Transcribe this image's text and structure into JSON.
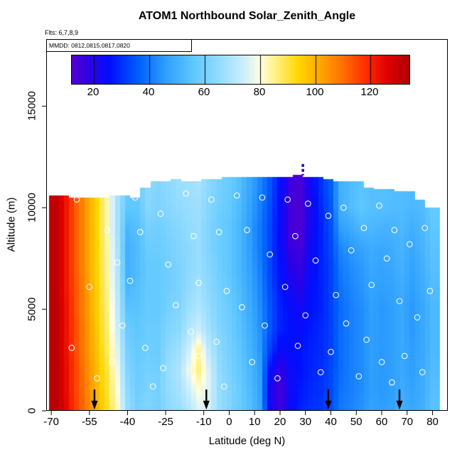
{
  "chart_data": {
    "type": "heatmap",
    "title": "ATOM1 Northbound Solar_Zenith_Angle",
    "flights_note": "Flts: 6,7,8,9",
    "mmdd_note": "MMDD: 0812,0815,0817,0820",
    "xlabel": "Latitude (deg N)",
    "ylabel": "Altitude (m)",
    "x_ticks": [
      -70,
      -55,
      -40,
      -25,
      -10,
      0,
      10,
      20,
      30,
      40,
      50,
      60,
      70,
      80
    ],
    "y_ticks": [
      0,
      5000,
      10000,
      15000
    ],
    "xlim": [
      -72,
      86
    ],
    "ylim": [
      0,
      18300
    ],
    "colorbar": {
      "ticks": [
        20,
        40,
        60,
        80,
        100,
        120
      ],
      "vmin": 12,
      "vmax": 134,
      "stops": [
        {
          "v": 10,
          "c": "#6000C8"
        },
        {
          "v": 18,
          "c": "#3000E6"
        },
        {
          "v": 26,
          "c": "#0010FF"
        },
        {
          "v": 36,
          "c": "#0060FF"
        },
        {
          "v": 46,
          "c": "#30A0FF"
        },
        {
          "v": 56,
          "c": "#60C8FF"
        },
        {
          "v": 66,
          "c": "#98DEFF"
        },
        {
          "v": 74,
          "c": "#CCEEFF"
        },
        {
          "v": 80,
          "c": "#FFFFE0"
        },
        {
          "v": 86,
          "c": "#FFF080"
        },
        {
          "v": 94,
          "c": "#FFD700"
        },
        {
          "v": 102,
          "c": "#FFA500"
        },
        {
          "v": 110,
          "c": "#FF7000"
        },
        {
          "v": 118,
          "c": "#FF3000"
        },
        {
          "v": 126,
          "c": "#E00000"
        },
        {
          "v": 135,
          "c": "#A80000"
        }
      ]
    },
    "grid": {
      "lat": [
        -68,
        -64,
        -60,
        -56,
        -52,
        -48,
        -44,
        -40,
        -36,
        -32,
        -28,
        -24,
        -20,
        -16,
        -12,
        -8,
        -4,
        0,
        4,
        8,
        12,
        16,
        20,
        24,
        28,
        32,
        36,
        40,
        44,
        48,
        52,
        56,
        60,
        64,
        68,
        72,
        76,
        80
      ],
      "alt_step": 1000,
      "values": [
        [
          132,
          132,
          132,
          132,
          132,
          132,
          131,
          131,
          131,
          131,
          131,
          131,
          131
        ],
        [
          125,
          124,
          124,
          123,
          123,
          123,
          122,
          122,
          122,
          122,
          122,
          122,
          122
        ],
        [
          116,
          115,
          115,
          114,
          114,
          113,
          113,
          112,
          112,
          112,
          112,
          112,
          112
        ],
        [
          108,
          107,
          106,
          105,
          105,
          104,
          104,
          103,
          103,
          103,
          103,
          103,
          103
        ],
        [
          100,
          99,
          98,
          97,
          96,
          95,
          95,
          94,
          94,
          94,
          94,
          94,
          94
        ],
        [
          92,
          91,
          90,
          88,
          87,
          86,
          85,
          84,
          84,
          83,
          83,
          83,
          83
        ],
        [
          82,
          80,
          78,
          76,
          74,
          72,
          71,
          70,
          69,
          68,
          68,
          68,
          68
        ],
        [
          66,
          64,
          62,
          60,
          58,
          55,
          52,
          50,
          50,
          52,
          56,
          58,
          58
        ],
        [
          60,
          59,
          58,
          57,
          56,
          55,
          54,
          53,
          53,
          54,
          56,
          57,
          57
        ],
        [
          62,
          61,
          60,
          59,
          58,
          57,
          57,
          57,
          58,
          60,
          63,
          64,
          64
        ],
        [
          60,
          60,
          59,
          58,
          58,
          57,
          57,
          57,
          58,
          59,
          61,
          62,
          62
        ],
        [
          64,
          65,
          66,
          64,
          62,
          60,
          59,
          59,
          60,
          61,
          63,
          64,
          64
        ],
        [
          66,
          68,
          69,
          67,
          64,
          62,
          61,
          61,
          62,
          63,
          65,
          66,
          66
        ],
        [
          70,
          74,
          78,
          74,
          70,
          67,
          65,
          64,
          64,
          65,
          66,
          67,
          67
        ],
        [
          76,
          80,
          86,
          84,
          74,
          70,
          68,
          66,
          66,
          66,
          67,
          68,
          68
        ],
        [
          75,
          76,
          76,
          72,
          68,
          66,
          64,
          63,
          62,
          62,
          63,
          64,
          64
        ],
        [
          66,
          66,
          65,
          64,
          62,
          61,
          60,
          59,
          58,
          58,
          59,
          60,
          60
        ],
        [
          62,
          62,
          61,
          60,
          59,
          58,
          57,
          56,
          56,
          56,
          57,
          58,
          58
        ],
        [
          58,
          58,
          57,
          56,
          55,
          54,
          53,
          52,
          52,
          52,
          53,
          54,
          54
        ],
        [
          54,
          53,
          52,
          51,
          50,
          49,
          48,
          47,
          46,
          46,
          47,
          48,
          48
        ],
        [
          48,
          47,
          46,
          45,
          44,
          43,
          42,
          41,
          40,
          40,
          41,
          42,
          42
        ],
        [
          24,
          22,
          26,
          32,
          35,
          35,
          34,
          33,
          33,
          33,
          34,
          35,
          35
        ],
        [
          16,
          15,
          18,
          24,
          28,
          28,
          27,
          26,
          25,
          24,
          25,
          26,
          26
        ],
        [
          24,
          23,
          24,
          25,
          26,
          25,
          23,
          20,
          17,
          15,
          15,
          16,
          16
        ],
        [
          28,
          27,
          26,
          26,
          25,
          23,
          20,
          17,
          15,
          13,
          13,
          14,
          14
        ],
        [
          30,
          29,
          28,
          28,
          27,
          26,
          25,
          24,
          23,
          22,
          22,
          23,
          23
        ],
        [
          31,
          30,
          30,
          29,
          29,
          28,
          28,
          28,
          28,
          28,
          29,
          30,
          30
        ],
        [
          34,
          33,
          33,
          32,
          32,
          32,
          32,
          32,
          33,
          34,
          35,
          36,
          36
        ],
        [
          40,
          39,
          38,
          38,
          38,
          38,
          39,
          40,
          42,
          46,
          50,
          50,
          50
        ],
        [
          42,
          41,
          41,
          41,
          41,
          41,
          42,
          43,
          45,
          49,
          53,
          53,
          53
        ],
        [
          44,
          43,
          43,
          43,
          43,
          43,
          44,
          45,
          47,
          52,
          56,
          55,
          55
        ],
        [
          47,
          46,
          46,
          46,
          46,
          46,
          47,
          48,
          49,
          52,
          54,
          54,
          54
        ],
        [
          46,
          45,
          45,
          45,
          45,
          45,
          46,
          47,
          48,
          51,
          54,
          54,
          54
        ],
        [
          47,
          46,
          46,
          46,
          46,
          46,
          47,
          48,
          49,
          51,
          53,
          53,
          53
        ],
        [
          50,
          49,
          48,
          48,
          48,
          48,
          49,
          50,
          51,
          52,
          53,
          53,
          53
        ],
        [
          48,
          47,
          46,
          46,
          45,
          45,
          46,
          47,
          48,
          50,
          52,
          52,
          52
        ],
        [
          50,
          49,
          49,
          48,
          48,
          48,
          49,
          50,
          51,
          52,
          53,
          53,
          53
        ],
        [
          55,
          54,
          53,
          52,
          52,
          52,
          53,
          54,
          55,
          56,
          57,
          57,
          57
        ]
      ],
      "top_alt": [
        10600,
        10600,
        10500,
        10500,
        10500,
        10500,
        10600,
        10600,
        10500,
        11000,
        11300,
        11300,
        11400,
        11300,
        11300,
        11400,
        11400,
        11500,
        11500,
        11500,
        11500,
        11500,
        11500,
        11500,
        11600,
        11500,
        11500,
        11400,
        11300,
        11300,
        11300,
        11000,
        10900,
        10900,
        10800,
        10800,
        10400,
        10000
      ]
    },
    "samples": [
      [
        -60,
        10400
      ],
      [
        -55,
        6100
      ],
      [
        -62,
        3100
      ],
      [
        -52,
        1600
      ],
      [
        -48,
        8900
      ],
      [
        -44,
        7300
      ],
      [
        -42,
        4200
      ],
      [
        -46,
        2400
      ],
      [
        -37,
        10500
      ],
      [
        -35,
        8800
      ],
      [
        -39,
        6400
      ],
      [
        -33,
        3100
      ],
      [
        -30,
        1200
      ],
      [
        -27,
        9700
      ],
      [
        -24,
        7200
      ],
      [
        -21,
        5200
      ],
      [
        -26,
        2100
      ],
      [
        -17,
        10700
      ],
      [
        -14,
        8600
      ],
      [
        -12,
        6300
      ],
      [
        -15,
        3900
      ],
      [
        -12,
        2700
      ],
      [
        -7,
        10400
      ],
      [
        -4,
        8800
      ],
      [
        -1,
        5900
      ],
      [
        -5,
        3400
      ],
      [
        -2,
        1200
      ],
      [
        3,
        10600
      ],
      [
        7,
        8900
      ],
      [
        5,
        5100
      ],
      [
        9,
        2400
      ],
      [
        13,
        10500
      ],
      [
        16,
        7700
      ],
      [
        14,
        4200
      ],
      [
        19,
        1600
      ],
      [
        23,
        10400
      ],
      [
        26,
        8600
      ],
      [
        22,
        6100
      ],
      [
        27,
        3200
      ],
      [
        31,
        10200
      ],
      [
        34,
        7400
      ],
      [
        30,
        4700
      ],
      [
        36,
        1900
      ],
      [
        39,
        9600
      ],
      [
        42,
        5700
      ],
      [
        40,
        2900
      ],
      [
        45,
        10000
      ],
      [
        48,
        7900
      ],
      [
        46,
        4300
      ],
      [
        51,
        1700
      ],
      [
        53,
        9000
      ],
      [
        56,
        6200
      ],
      [
        54,
        3500
      ],
      [
        59,
        10100
      ],
      [
        62,
        7500
      ],
      [
        60,
        2400
      ],
      [
        65,
        8900
      ],
      [
        67,
        5400
      ],
      [
        64,
        1400
      ],
      [
        71,
        8200
      ],
      [
        74,
        4600
      ],
      [
        69,
        2700
      ],
      [
        77,
        9000
      ],
      [
        79,
        5900
      ],
      [
        76,
        1900
      ]
    ],
    "arrows": [
      -53,
      -9,
      39,
      67
    ],
    "dash_mark": {
      "lat": 29,
      "alt_from": 11600,
      "alt_to": 12150,
      "color": "#3300AA"
    }
  }
}
